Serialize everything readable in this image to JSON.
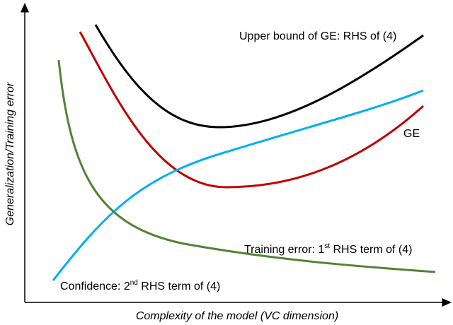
{
  "axes": {
    "x_label": "Complexity of the model (VC dimension)",
    "y_label": "Generalization/Training error"
  },
  "curves": [
    {
      "label": {
        "text": "Upper bound of GE: RHS of (4)"
      }
    },
    {
      "label": {
        "text": "GE"
      }
    },
    {
      "label": {
        "text": "Training error: 1",
        "sup": "st",
        "rest": " RHS term of (4)"
      }
    },
    {
      "label": {
        "text": "Confidence: 2",
        "sup": "nd",
        "rest": " RHS term of (4)"
      }
    }
  ]
}
